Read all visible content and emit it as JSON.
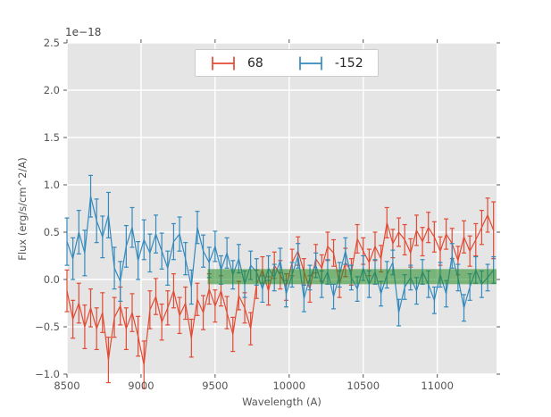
{
  "figure": {
    "background": "#ffffff",
    "plot_background": "#e5e5e5",
    "grid_color": "#ffffff",
    "tick_color": "#555555"
  },
  "chart_data": {
    "type": "line",
    "subtype": "errorbar-spectrum",
    "title": "",
    "xlabel": "Wavelength (A)",
    "ylabel": "Flux (erg/s/cm^2/A)",
    "offset_text": "1e−18",
    "xlim": [
      8500,
      11400
    ],
    "ylim": [
      -1.0,
      2.5
    ],
    "grid": true,
    "legend_position": "upper center",
    "xticks": [
      8500,
      9000,
      9500,
      10000,
      10500,
      11000
    ],
    "xtick_labels": [
      "8500",
      "9000",
      "9500",
      "10000",
      "10500",
      "11000"
    ],
    "yticks": [
      -1.0,
      -0.5,
      0.0,
      0.5,
      1.0,
      1.5,
      2.0,
      2.5
    ],
    "ytick_labels": [
      "−1.0",
      "−0.5",
      "0.0",
      "0.5",
      "1.0",
      "1.5",
      "2.0",
      "2.5"
    ],
    "x": [
      8500,
      8540,
      8580,
      8620,
      8660,
      8700,
      8740,
      8780,
      8820,
      8860,
      8900,
      8940,
      8980,
      9020,
      9060,
      9100,
      9140,
      9180,
      9220,
      9260,
      9300,
      9340,
      9380,
      9420,
      9460,
      9500,
      9540,
      9580,
      9620,
      9660,
      9700,
      9740,
      9780,
      9820,
      9860,
      9900,
      9940,
      9980,
      10020,
      10060,
      10100,
      10140,
      10180,
      10220,
      10260,
      10300,
      10340,
      10380,
      10420,
      10460,
      10500,
      10540,
      10580,
      10620,
      10660,
      10700,
      10740,
      10780,
      10820,
      10860,
      10900,
      10940,
      10980,
      11020,
      11060,
      11100,
      11140,
      11180,
      11220,
      11260,
      11300,
      11340,
      11380
    ],
    "series": [
      {
        "name": "68",
        "color": "#e24a33",
        "y": [
          -0.12,
          -0.42,
          -0.25,
          -0.5,
          -0.3,
          -0.52,
          -0.35,
          -0.85,
          -0.4,
          -0.28,
          -0.52,
          -0.35,
          -0.6,
          -0.9,
          -0.32,
          -0.18,
          -0.45,
          -0.3,
          -0.12,
          -0.38,
          -0.25,
          -0.62,
          -0.21,
          -0.35,
          -0.1,
          -0.28,
          -0.12,
          -0.35,
          -0.58,
          -0.17,
          -0.3,
          -0.52,
          -0.05,
          0.1,
          -0.12,
          0.15,
          0.05,
          -0.08,
          0.18,
          0.3,
          0.08,
          -0.1,
          0.22,
          0.12,
          0.35,
          0.28,
          -0.05,
          0.18,
          0.08,
          0.43,
          0.3,
          0.18,
          0.35,
          0.22,
          0.6,
          0.38,
          0.5,
          0.42,
          0.28,
          0.52,
          0.4,
          0.55,
          0.45,
          0.3,
          0.48,
          0.38,
          0.2,
          0.45,
          0.3,
          0.42,
          0.55,
          0.68,
          0.52
        ],
        "yerr": [
          0.22,
          0.2,
          0.21,
          0.23,
          0.2,
          0.22,
          0.21,
          0.24,
          0.21,
          0.2,
          0.22,
          0.2,
          0.21,
          0.25,
          0.2,
          0.19,
          0.19,
          0.18,
          0.18,
          0.19,
          0.17,
          0.2,
          0.17,
          0.18,
          0.16,
          0.17,
          0.16,
          0.17,
          0.18,
          0.15,
          0.16,
          0.17,
          0.15,
          0.14,
          0.15,
          0.14,
          0.15,
          0.14,
          0.14,
          0.15,
          0.14,
          0.14,
          0.15,
          0.14,
          0.15,
          0.14,
          0.14,
          0.15,
          0.14,
          0.15,
          0.14,
          0.14,
          0.15,
          0.14,
          0.16,
          0.15,
          0.15,
          0.16,
          0.15,
          0.16,
          0.15,
          0.16,
          0.16,
          0.15,
          0.16,
          0.16,
          0.15,
          0.17,
          0.16,
          0.17,
          0.18,
          0.18,
          0.3
        ]
      },
      {
        "name": "-152",
        "color": "#348abd",
        "y": [
          0.4,
          0.22,
          0.5,
          0.28,
          0.88,
          0.62,
          0.45,
          0.68,
          0.12,
          -0.02,
          0.35,
          0.55,
          0.2,
          0.42,
          0.28,
          0.48,
          0.3,
          0.12,
          0.4,
          0.48,
          0.22,
          -0.08,
          0.55,
          0.3,
          0.18,
          0.35,
          0.1,
          0.28,
          0.05,
          0.22,
          -0.05,
          0.15,
          0.08,
          -0.1,
          0.12,
          0.02,
          0.2,
          -0.15,
          0.05,
          0.25,
          -0.2,
          0.02,
          0.15,
          -0.05,
          0.08,
          -0.18,
          0.05,
          0.3,
          0.02,
          -0.1,
          0.12,
          -0.05,
          0.08,
          -0.15,
          0.05,
          0.18,
          -0.35,
          -0.08,
          0.02,
          -0.12,
          0.08,
          -0.05,
          -0.22,
          0.05,
          -0.15,
          0.25,
          0.02,
          -0.3,
          -0.08,
          0.1,
          -0.05,
          0.02,
          0.1
        ],
        "yerr": [
          0.25,
          0.22,
          0.23,
          0.24,
          0.22,
          0.23,
          0.22,
          0.24,
          0.22,
          0.21,
          0.22,
          0.21,
          0.2,
          0.21,
          0.2,
          0.2,
          0.19,
          0.18,
          0.19,
          0.18,
          0.17,
          0.18,
          0.17,
          0.17,
          0.16,
          0.16,
          0.15,
          0.16,
          0.15,
          0.15,
          0.14,
          0.15,
          0.14,
          0.14,
          0.13,
          0.14,
          0.13,
          0.14,
          0.13,
          0.13,
          0.14,
          0.13,
          0.13,
          0.14,
          0.13,
          0.13,
          0.13,
          0.14,
          0.13,
          0.13,
          0.13,
          0.14,
          0.13,
          0.13,
          0.14,
          0.13,
          0.14,
          0.13,
          0.13,
          0.14,
          0.13,
          0.14,
          0.14,
          0.13,
          0.14,
          0.13,
          0.14,
          0.14,
          0.14,
          0.14,
          0.14,
          0.14,
          0.14
        ]
      }
    ],
    "band": {
      "description": "green zero-level band",
      "x_range": [
        9450,
        11400
      ],
      "y_range": [
        -0.05,
        0.11
      ],
      "color": "#228b22",
      "opacity": 0.55
    }
  }
}
